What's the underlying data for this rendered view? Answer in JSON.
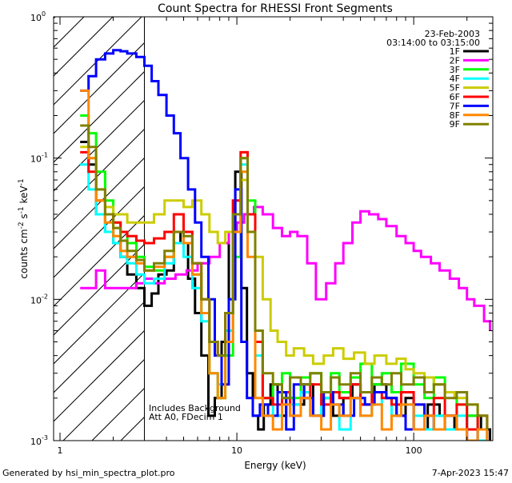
{
  "chart_data": {
    "type": "line",
    "title": "Count Spectra for RHESSI Front Segments",
    "xlabel": "Energy (keV)",
    "ylabel_main": "counts cm",
    "ylabel_unit1": "-2",
    "ylabel_s": " s",
    "ylabel_unit2": "-1",
    "ylabel_kev": " keV",
    "ylabel_unit3": "-1",
    "xscale": "log",
    "yscale": "log",
    "xlim": [
      0.92,
      280
    ],
    "ylim": [
      0.001,
      1.0
    ],
    "x_ticks": [
      {
        "value": 1,
        "label": "1"
      },
      {
        "value": 10,
        "label": "10"
      },
      {
        "value": 100,
        "label": "100"
      }
    ],
    "y_ticks": [
      {
        "value": 1.0,
        "base": "10",
        "exp": "0"
      },
      {
        "value": 0.1,
        "base": "10",
        "exp": "-1"
      },
      {
        "value": 0.01,
        "base": "10",
        "exp": "-2"
      },
      {
        "value": 0.001,
        "base": "10",
        "exp": "-3"
      }
    ],
    "legend": {
      "date": "23-Feb-2003",
      "time_range": "03:14:00 to 03:15:00",
      "placement": "top-right"
    },
    "annotations": {
      "line1": "Includes Background",
      "line2": "Att A0, FDecim 1",
      "hatched_below_keV": 3.0
    },
    "series": [
      {
        "name": "1F",
        "color": "#000000",
        "x": [
          1.3,
          1.45,
          1.6,
          1.8,
          2.0,
          2.2,
          2.4,
          2.7,
          3.0,
          3.3,
          3.6,
          4.0,
          4.4,
          4.8,
          5.3,
          5.8,
          6.3,
          6.9,
          7.5,
          8.2,
          9.0,
          9.8,
          10.6,
          11.4,
          12.3,
          13.2,
          14.2,
          15.5,
          17,
          19,
          21,
          24,
          27,
          31,
          35,
          40,
          45,
          50,
          60,
          70,
          80,
          90,
          100,
          120,
          140,
          170,
          200,
          240,
          270
        ],
        "y": [
          0.13,
          0.09,
          0.04,
          0.03,
          0.025,
          0.02,
          0.015,
          0.012,
          0.009,
          0.011,
          0.015,
          0.016,
          0.03,
          0.025,
          0.014,
          0.008,
          0.004,
          0.0015,
          0.002,
          0.005,
          0.03,
          0.08,
          0.012,
          0.003,
          0.0015,
          0.0012,
          0.0018,
          0.0025,
          0.0015,
          0.002,
          0.0018,
          0.0025,
          0.0015,
          0.002,
          0.0015,
          0.002,
          0.0025,
          0.0018,
          0.0025,
          0.002,
          0.0015,
          0.002,
          0.0012,
          0.0018,
          0.0015,
          0.0012,
          0.0015,
          0.0012,
          0.001
        ]
      },
      {
        "name": "2F",
        "color": "#ff00ff",
        "x": [
          1.3,
          1.45,
          1.6,
          1.8,
          2.0,
          2.2,
          2.4,
          2.7,
          3.0,
          3.4,
          3.9,
          4.5,
          5.2,
          6.0,
          7.0,
          8.0,
          9.0,
          10.0,
          11.0,
          12.5,
          14,
          16,
          18,
          20,
          22,
          25,
          28,
          32,
          36,
          40,
          45,
          50,
          56,
          63,
          70,
          80,
          90,
          100,
          110,
          125,
          140,
          160,
          180,
          200,
          220,
          250,
          270
        ],
        "y": [
          0.012,
          0.012,
          0.016,
          0.012,
          0.012,
          0.012,
          0.012,
          0.013,
          0.014,
          0.013,
          0.014,
          0.015,
          0.016,
          0.018,
          0.02,
          0.025,
          0.03,
          0.035,
          0.04,
          0.045,
          0.04,
          0.032,
          0.028,
          0.03,
          0.028,
          0.018,
          0.01,
          0.013,
          0.018,
          0.025,
          0.035,
          0.042,
          0.04,
          0.037,
          0.033,
          0.028,
          0.025,
          0.022,
          0.02,
          0.018,
          0.016,
          0.014,
          0.012,
          0.01,
          0.009,
          0.007,
          0.006
        ]
      },
      {
        "name": "3F",
        "color": "#00ff00",
        "x": [
          1.3,
          1.45,
          1.6,
          1.8,
          2.0,
          2.2,
          2.4,
          2.7,
          3.0,
          3.4,
          3.9,
          4.4,
          5.0,
          5.6,
          6.3,
          7.0,
          7.8,
          8.6,
          9.5,
          10.5,
          11.5,
          12.7,
          14,
          16,
          18,
          20,
          23,
          26,
          30,
          34,
          38,
          44,
          50,
          58,
          66,
          75,
          85,
          100,
          115,
          130,
          150,
          175,
          200,
          230,
          260
        ],
        "y": [
          0.2,
          0.15,
          0.08,
          0.05,
          0.035,
          0.03,
          0.025,
          0.02,
          0.017,
          0.016,
          0.02,
          0.03,
          0.025,
          0.015,
          0.008,
          0.003,
          0.002,
          0.004,
          0.02,
          0.1,
          0.05,
          0.005,
          0.002,
          0.0025,
          0.003,
          0.002,
          0.0028,
          0.003,
          0.002,
          0.003,
          0.0022,
          0.0028,
          0.0035,
          0.0025,
          0.003,
          0.0022,
          0.0035,
          0.0025,
          0.002,
          0.0028,
          0.0022,
          0.0018,
          0.0015,
          0.0012,
          0.001
        ]
      },
      {
        "name": "4F",
        "color": "#00ffff",
        "x": [
          1.3,
          1.45,
          1.6,
          1.8,
          2.0,
          2.2,
          2.4,
          2.7,
          3.0,
          3.4,
          3.9,
          4.4,
          5.0,
          5.6,
          6.3,
          7.0,
          7.8,
          8.6,
          9.5,
          10.5,
          11.5,
          12.7,
          14,
          16,
          18,
          20,
          23,
          26,
          30,
          34,
          38,
          44,
          50,
          58,
          66,
          75,
          85,
          100,
          115,
          130,
          150,
          175,
          200,
          230,
          260
        ],
        "y": [
          0.09,
          0.06,
          0.04,
          0.03,
          0.025,
          0.02,
          0.018,
          0.015,
          0.013,
          0.014,
          0.018,
          0.025,
          0.02,
          0.012,
          0.007,
          0.003,
          0.0025,
          0.006,
          0.03,
          0.09,
          0.03,
          0.004,
          0.002,
          0.0015,
          0.002,
          0.0018,
          0.0022,
          0.0015,
          0.002,
          0.0018,
          0.0012,
          0.002,
          0.0015,
          0.0018,
          0.002,
          0.0015,
          0.0018,
          0.0015,
          0.0012,
          0.0015,
          0.0012,
          0.0015,
          0.0012,
          0.001,
          0.001
        ]
      },
      {
        "name": "5F",
        "color": "#cccc00",
        "x": [
          1.3,
          1.45,
          1.6,
          1.8,
          2.0,
          2.2,
          2.4,
          2.7,
          3.0,
          3.4,
          3.9,
          4.4,
          5.0,
          5.6,
          6.3,
          7.0,
          7.8,
          8.6,
          9.5,
          10.5,
          11.5,
          12.7,
          14,
          15.5,
          17,
          19,
          21,
          24,
          27,
          31,
          35,
          40,
          46,
          53,
          60,
          70,
          80,
          90,
          100,
          115,
          130,
          150,
          170,
          200,
          230,
          260
        ],
        "y": [
          0.12,
          0.1,
          0.06,
          0.045,
          0.04,
          0.04,
          0.035,
          0.035,
          0.035,
          0.04,
          0.05,
          0.05,
          0.045,
          0.05,
          0.04,
          0.03,
          0.025,
          0.03,
          0.05,
          0.07,
          0.04,
          0.02,
          0.01,
          0.006,
          0.005,
          0.004,
          0.0045,
          0.004,
          0.0035,
          0.004,
          0.0045,
          0.0038,
          0.0042,
          0.0035,
          0.004,
          0.0035,
          0.0038,
          0.0032,
          0.003,
          0.0028,
          0.0025,
          0.0022,
          0.002,
          0.0018,
          0.0015,
          0.0012
        ]
      },
      {
        "name": "6F",
        "color": "#ff0000",
        "x": [
          1.3,
          1.45,
          1.6,
          1.8,
          2.0,
          2.2,
          2.4,
          2.7,
          3.0,
          3.4,
          3.9,
          4.4,
          5.0,
          5.6,
          6.3,
          7.0,
          7.8,
          8.6,
          9.5,
          10.5,
          11.5,
          12.7,
          14,
          16,
          18,
          20,
          23,
          26,
          30,
          34,
          38,
          44,
          50,
          58,
          66,
          75,
          85,
          100,
          115,
          130,
          150,
          175,
          200,
          230,
          260
        ],
        "y": [
          0.11,
          0.08,
          0.05,
          0.04,
          0.035,
          0.03,
          0.028,
          0.026,
          0.025,
          0.027,
          0.03,
          0.04,
          0.03,
          0.018,
          0.01,
          0.005,
          0.004,
          0.008,
          0.05,
          0.11,
          0.04,
          0.005,
          0.002,
          0.0018,
          0.0022,
          0.0015,
          0.002,
          0.0025,
          0.0018,
          0.0022,
          0.002,
          0.0025,
          0.0018,
          0.0022,
          0.002,
          0.0018,
          0.0022,
          0.0018,
          0.0015,
          0.002,
          0.0015,
          0.0018,
          0.0012,
          0.0015,
          0.0012
        ]
      },
      {
        "name": "7F",
        "color": "#0000ff",
        "x": [
          1.3,
          1.45,
          1.6,
          1.8,
          2.0,
          2.2,
          2.4,
          2.7,
          3.0,
          3.3,
          3.6,
          4.0,
          4.4,
          4.8,
          5.3,
          5.8,
          6.3,
          6.9,
          7.5,
          8.2,
          9.0,
          9.8,
          10.6,
          11.4,
          12.3,
          13.5,
          15,
          17,
          19,
          21,
          24,
          27,
          31,
          35,
          40,
          46,
          53,
          60,
          70,
          80,
          90,
          100,
          115,
          130,
          150,
          175,
          200,
          230,
          260
        ],
        "y": [
          0.3,
          0.38,
          0.5,
          0.55,
          0.58,
          0.57,
          0.55,
          0.52,
          0.45,
          0.35,
          0.28,
          0.2,
          0.15,
          0.1,
          0.06,
          0.035,
          0.02,
          0.01,
          0.004,
          0.0025,
          0.01,
          0.06,
          0.005,
          0.002,
          0.0015,
          0.0018,
          0.0015,
          0.0022,
          0.0012,
          0.0025,
          0.002,
          0.0015,
          0.0022,
          0.0018,
          0.0015,
          0.002,
          0.0018,
          0.0022,
          0.002,
          0.0015,
          0.0012,
          0.0018,
          0.0015,
          0.0012,
          0.0015,
          0.0012,
          0.001,
          0.0012,
          0.001
        ]
      },
      {
        "name": "8F",
        "color": "#ff8800",
        "x": [
          1.3,
          1.45,
          1.6,
          1.8,
          2.0,
          2.2,
          2.4,
          2.7,
          3.0,
          3.4,
          3.9,
          4.4,
          5.0,
          5.6,
          6.3,
          7.0,
          7.8,
          8.6,
          9.5,
          10.5,
          11.5,
          12.7,
          14,
          16,
          18,
          20,
          23,
          26,
          30,
          34,
          38,
          44,
          50,
          58,
          66,
          75,
          85,
          100,
          115,
          130,
          150,
          175,
          200,
          230,
          260
        ],
        "y": [
          0.3,
          0.1,
          0.05,
          0.035,
          0.028,
          0.022,
          0.02,
          0.018,
          0.016,
          0.017,
          0.02,
          0.03,
          0.025,
          0.015,
          0.008,
          0.003,
          0.002,
          0.005,
          0.03,
          0.08,
          0.02,
          0.002,
          0.0015,
          0.0012,
          0.0018,
          0.0015,
          0.002,
          0.0015,
          0.0012,
          0.0018,
          0.0015,
          0.002,
          0.0015,
          0.0018,
          0.0012,
          0.0015,
          0.0018,
          0.0012,
          0.0015,
          0.0012,
          0.0015,
          0.0012,
          0.001,
          0.0012,
          0.001
        ]
      },
      {
        "name": "9F",
        "color": "#808000",
        "x": [
          1.3,
          1.45,
          1.6,
          1.8,
          2.0,
          2.2,
          2.4,
          2.7,
          3.0,
          3.4,
          3.9,
          4.4,
          5.0,
          5.6,
          6.3,
          7.0,
          7.8,
          8.6,
          9.5,
          10.5,
          11.5,
          12.7,
          14,
          16,
          18,
          20,
          23,
          26,
          30,
          34,
          38,
          44,
          50,
          58,
          66,
          75,
          85,
          100,
          115,
          130,
          150,
          175,
          200,
          230,
          260
        ],
        "y": [
          0.17,
          0.12,
          0.06,
          0.04,
          0.032,
          0.026,
          0.022,
          0.019,
          0.016,
          0.018,
          0.022,
          0.03,
          0.028,
          0.018,
          0.01,
          0.005,
          0.004,
          0.008,
          0.04,
          0.1,
          0.03,
          0.006,
          0.003,
          0.0025,
          0.002,
          0.0028,
          0.0025,
          0.003,
          0.0022,
          0.0028,
          0.0025,
          0.003,
          0.0022,
          0.0028,
          0.0025,
          0.003,
          0.0025,
          0.0028,
          0.0022,
          0.0025,
          0.002,
          0.0022,
          0.0018,
          0.0015,
          0.0012
        ]
      }
    ]
  },
  "footer": {
    "generated_by": "Generated by hsi_min_spectra_plot.pro",
    "timestamp": "7-Apr-2023 15:47"
  }
}
